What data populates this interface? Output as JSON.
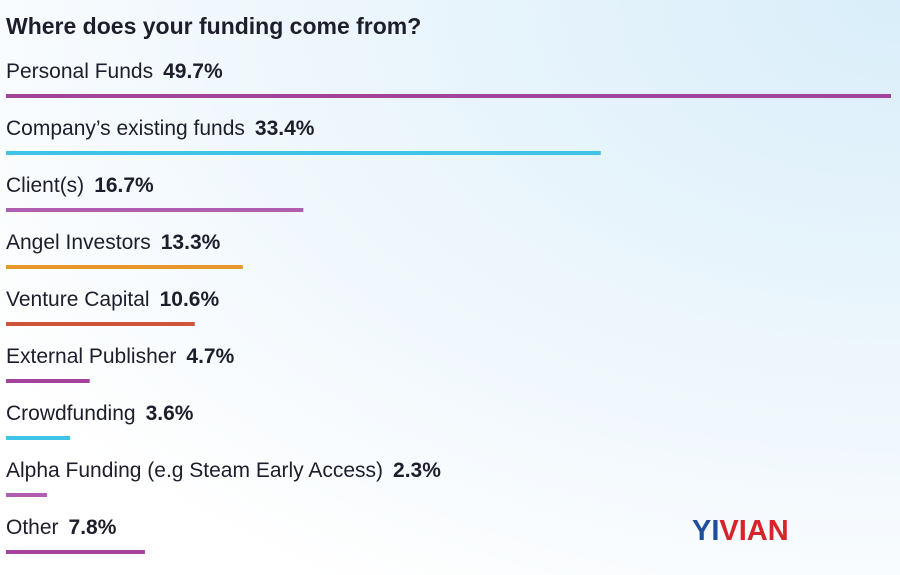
{
  "chart_data": {
    "type": "bar",
    "orientation": "horizontal",
    "title": "Where does your funding come from?",
    "categories": [
      "Personal Funds",
      "Company’s existing funds",
      "Client(s)",
      "Angel Investors",
      "Venture Capital",
      "External Publisher",
      "Crowdfunding",
      "Alpha Funding (e.g Steam Early Access)",
      "Other"
    ],
    "values": [
      49.7,
      33.4,
      16.7,
      13.3,
      10.6,
      4.7,
      3.6,
      2.3,
      7.8
    ],
    "value_labels": [
      "49.7%",
      "33.4%",
      "16.7%",
      "13.3%",
      "10.6%",
      "4.7%",
      "3.6%",
      "2.3%",
      "7.8%"
    ],
    "colors": [
      "#a2449b",
      "#3fc3e6",
      "#b15db0",
      "#e8972d",
      "#cf553a",
      "#a2449b",
      "#3fc3e6",
      "#b15db0",
      "#a2449b"
    ],
    "watermark": [
      "YI",
      "VIAN"
    ]
  }
}
